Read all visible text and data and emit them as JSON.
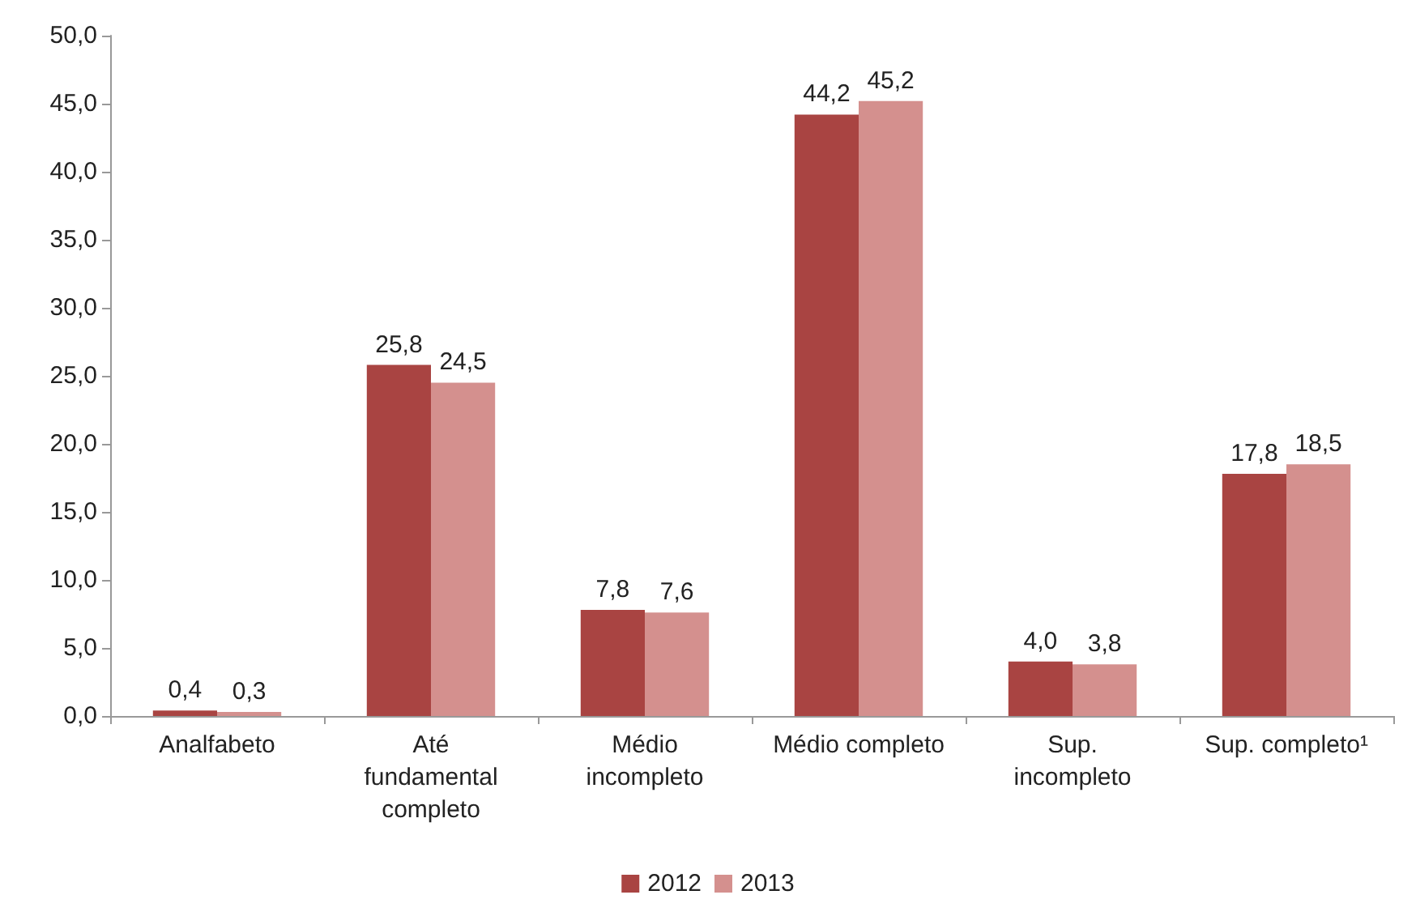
{
  "chart_data": {
    "type": "bar",
    "categories": [
      "Analfabeto",
      "Até\nfundamental\ncompleto",
      "Médio\nincompleto",
      "Médio completo",
      "Sup.\nincompleto",
      "Sup. completo¹"
    ],
    "series": [
      {
        "name": "2012",
        "color": "#a94442",
        "values": [
          0.4,
          25.8,
          7.8,
          44.2,
          4.0,
          17.8
        ],
        "value_labels": [
          "0,4",
          "25,8",
          "7,8",
          "44,2",
          "4,0",
          "17,8"
        ]
      },
      {
        "name": "2013",
        "color": "#d4908e",
        "values": [
          0.3,
          24.5,
          7.6,
          45.2,
          3.8,
          18.5
        ],
        "value_labels": [
          "0,3",
          "24,5",
          "7,6",
          "45,2",
          "3,8",
          "18,5"
        ]
      }
    ],
    "ylim": [
      0,
      50
    ],
    "yticks": [
      {
        "value": 0,
        "label": "0,0"
      },
      {
        "value": 5,
        "label": "5,0"
      },
      {
        "value": 10,
        "label": "10,0"
      },
      {
        "value": 15,
        "label": "15,0"
      },
      {
        "value": 20,
        "label": "20,0"
      },
      {
        "value": 25,
        "label": "25,0"
      },
      {
        "value": 30,
        "label": "30,0"
      },
      {
        "value": 35,
        "label": "35,0"
      },
      {
        "value": 40,
        "label": "40,0"
      },
      {
        "value": 45,
        "label": "45,0"
      },
      {
        "value": 50,
        "label": "50,0"
      }
    ],
    "grid": false,
    "legend": "bottom"
  }
}
